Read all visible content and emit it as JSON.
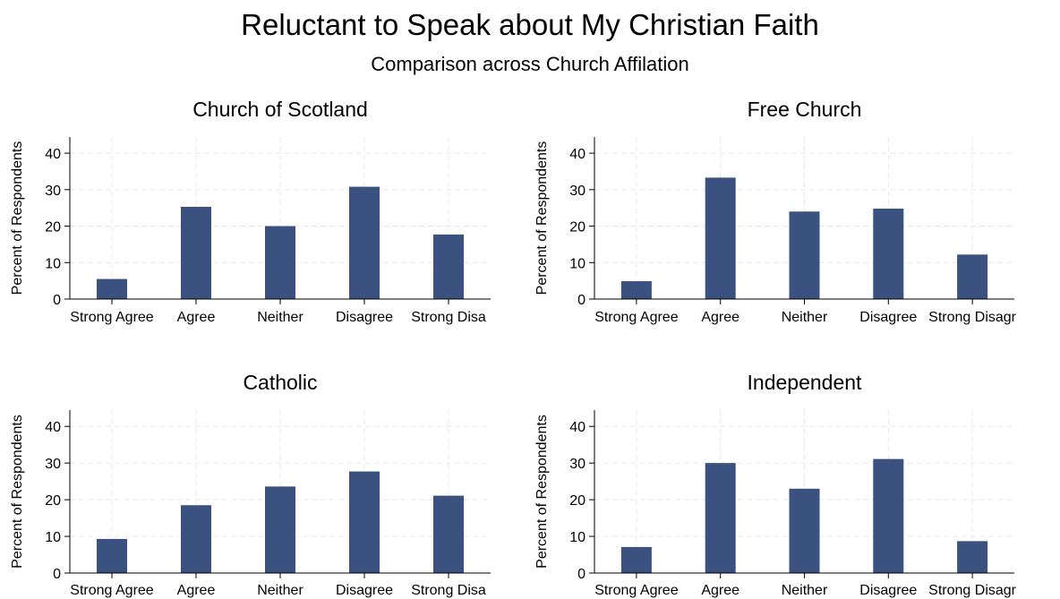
{
  "title": "Reluctant to Speak about My Christian Faith",
  "subtitle": "Comparison across Church Affilation",
  "colors": {
    "bar": "#3b5180",
    "axis": "#000000",
    "grid": "#e4e8ef"
  },
  "chart_data": [
    {
      "type": "bar",
      "title": "Church of Scotland",
      "ylabel": "Percent of Respondents",
      "xlabel": "",
      "categories": [
        "Strong Agree",
        "Agree",
        "Neither",
        "Disagree",
        "Strong Disa"
      ],
      "values": [
        5.5,
        25.3,
        20.0,
        30.8,
        17.7
      ],
      "yticks": [
        0,
        10,
        20,
        30,
        40
      ],
      "ylim": [
        0,
        40
      ],
      "grid": true
    },
    {
      "type": "bar",
      "title": "Free Church",
      "ylabel": "Percent of Respondents",
      "xlabel": "",
      "categories": [
        "Strong Agree",
        "Agree",
        "Neither",
        "Disagree",
        "Strong Disagr"
      ],
      "values": [
        4.9,
        33.3,
        24.0,
        24.8,
        12.2
      ],
      "yticks": [
        0,
        10,
        20,
        30,
        40
      ],
      "ylim": [
        0,
        40
      ],
      "grid": true
    },
    {
      "type": "bar",
      "title": "Catholic",
      "ylabel": "Percent of Respondents",
      "xlabel": "",
      "categories": [
        "Strong Agree",
        "Agree",
        "Neither",
        "Disagree",
        "Strong Disa"
      ],
      "values": [
        9.3,
        18.5,
        23.6,
        27.7,
        21.1
      ],
      "yticks": [
        0,
        10,
        20,
        30,
        40
      ],
      "ylim": [
        0,
        40
      ],
      "grid": true
    },
    {
      "type": "bar",
      "title": "Independent",
      "ylabel": "Percent of Respondents",
      "xlabel": "",
      "categories": [
        "Strong Agree",
        "Agree",
        "Neither",
        "Disagree",
        "Strong Disagr"
      ],
      "values": [
        7.1,
        30.0,
        23.0,
        31.1,
        8.7
      ],
      "yticks": [
        0,
        10,
        20,
        30,
        40
      ],
      "ylim": [
        0,
        40
      ],
      "grid": true
    }
  ]
}
